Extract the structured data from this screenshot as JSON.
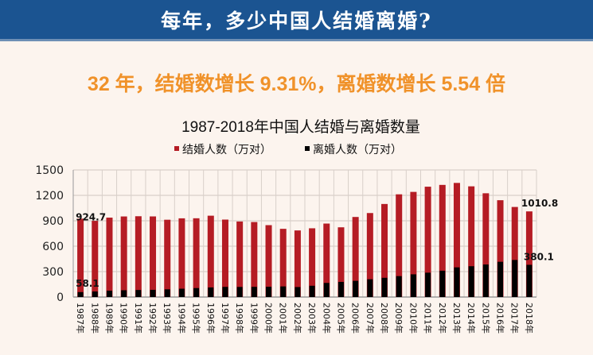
{
  "header": {
    "title": "每年，多少中国人结婚离婚?"
  },
  "subtitle": "32 年，结婚数增长 9.31%，离婚数增长 5.54 倍",
  "colors": {
    "header_bg": "#1b5491",
    "subtitle": "#f0922a",
    "marriage": "#b51c24",
    "divorce": "#000000",
    "background": "#fcf4ee"
  },
  "chart_data": {
    "type": "bar",
    "title": "1987-2018年中国人结婚与离婚数量",
    "legend_position": "top",
    "grid": true,
    "ylim": [
      0,
      1500
    ],
    "yticks": [
      "0",
      "300",
      "600",
      "900",
      "1200",
      "1500"
    ],
    "categories": [
      "1987年",
      "1988年",
      "1989年",
      "1990年",
      "1991年",
      "1992年",
      "1993年",
      "1994年",
      "1995年",
      "1996年",
      "1997年",
      "1998年",
      "1999年",
      "2000年",
      "2001年",
      "2002年",
      "2003年",
      "2004年",
      "2005年",
      "2006年",
      "2007年",
      "2008年",
      "2009年",
      "2010年",
      "2011年",
      "2012年",
      "2013年",
      "2014年",
      "2015年",
      "2016年",
      "2017年",
      "2018年"
    ],
    "series": [
      {
        "name": "结婚人数（万对）",
        "color": "#b51c24",
        "values": [
          924.7,
          899.2,
          937.2,
          951.1,
          953.7,
          951.5,
          912.4,
          929.0,
          929.7,
          960.0,
          914.1,
          891.7,
          885.3,
          848.5,
          805.0,
          786.0,
          811.4,
          867.2,
          823.1,
          945.0,
          991.4,
          1098.3,
          1212.4,
          1241.0,
          1302.4,
          1323.6,
          1346.9,
          1306.7,
          1224.7,
          1142.8,
          1063.1,
          1010.8
        ]
      },
      {
        "name": "离婚人数（万对）",
        "color": "#000000",
        "values": [
          58.1,
          65.5,
          75.3,
          80.0,
          82.9,
          85.0,
          90.9,
          98.1,
          105.6,
          113.2,
          119.8,
          119.1,
          120.2,
          121.3,
          125.1,
          117.7,
          133.0,
          166.5,
          178.5,
          191.3,
          209.8,
          226.9,
          246.8,
          267.8,
          287.4,
          310.4,
          350.0,
          363.7,
          384.1,
          415.8,
          437.4,
          380.1
        ]
      }
    ],
    "data_labels": [
      "924.7",
      "58.1",
      "1010.8",
      "380.1"
    ]
  }
}
